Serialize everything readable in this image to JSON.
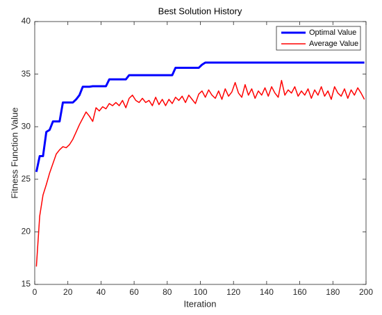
{
  "chart_data": {
    "type": "line",
    "title": "Best Solution History",
    "xlabel": "Iteration",
    "ylabel": "Fitness Function Value",
    "x": [
      1,
      3,
      5,
      7,
      9,
      11,
      13,
      15,
      17,
      19,
      21,
      23,
      25,
      27,
      29,
      31,
      33,
      35,
      37,
      39,
      41,
      43,
      45,
      47,
      49,
      51,
      53,
      55,
      57,
      59,
      61,
      63,
      65,
      67,
      69,
      71,
      73,
      75,
      77,
      79,
      81,
      83,
      85,
      87,
      89,
      91,
      93,
      95,
      97,
      99,
      101,
      103,
      105,
      107,
      109,
      111,
      113,
      115,
      117,
      119,
      121,
      123,
      125,
      127,
      129,
      131,
      133,
      135,
      137,
      139,
      141,
      143,
      145,
      147,
      149,
      151,
      153,
      155,
      157,
      159,
      161,
      163,
      165,
      167,
      169,
      171,
      173,
      175,
      177,
      179,
      181,
      183,
      185,
      187,
      189,
      191,
      193,
      195,
      197,
      199
    ],
    "series": [
      {
        "name": "Optimal Value",
        "color": "#0000ff",
        "width": 3,
        "values": [
          25.7,
          27.2,
          27.2,
          29.5,
          29.7,
          30.5,
          30.5,
          30.5,
          32.3,
          32.3,
          32.3,
          32.3,
          32.6,
          33.0,
          33.8,
          33.8,
          33.8,
          33.85,
          33.85,
          33.85,
          33.85,
          33.85,
          34.5,
          34.5,
          34.5,
          34.5,
          34.5,
          34.5,
          34.9,
          34.9,
          34.9,
          34.9,
          34.9,
          34.9,
          34.9,
          34.9,
          34.9,
          34.9,
          34.9,
          34.9,
          34.9,
          34.9,
          35.6,
          35.6,
          35.6,
          35.6,
          35.6,
          35.6,
          35.6,
          35.6,
          35.9,
          36.1,
          36.1,
          36.1,
          36.1,
          36.1,
          36.1,
          36.1,
          36.1,
          36.1,
          36.1,
          36.1,
          36.1,
          36.1,
          36.1,
          36.1,
          36.1,
          36.1,
          36.1,
          36.1,
          36.1,
          36.1,
          36.1,
          36.1,
          36.1,
          36.1,
          36.1,
          36.1,
          36.1,
          36.1,
          36.1,
          36.1,
          36.1,
          36.1,
          36.1,
          36.1,
          36.1,
          36.1,
          36.1,
          36.1,
          36.1,
          36.1,
          36.1,
          36.1,
          36.1,
          36.1,
          36.1,
          36.1,
          36.1,
          36.1
        ]
      },
      {
        "name": "Average Value",
        "color": "#ff0000",
        "width": 1.5,
        "values": [
          16.7,
          21.5,
          23.5,
          24.5,
          25.6,
          26.5,
          27.4,
          27.8,
          28.1,
          28.0,
          28.3,
          28.8,
          29.5,
          30.2,
          30.8,
          31.4,
          31.0,
          30.5,
          31.8,
          31.5,
          31.9,
          31.7,
          32.2,
          32.0,
          32.3,
          32.0,
          32.5,
          31.8,
          32.7,
          33.0,
          32.5,
          32.3,
          32.7,
          32.3,
          32.5,
          32.0,
          32.8,
          32.1,
          32.6,
          32.0,
          32.6,
          32.2,
          32.8,
          32.5,
          32.9,
          32.3,
          33.0,
          32.6,
          32.2,
          33.1,
          33.4,
          32.8,
          33.5,
          33.0,
          32.7,
          33.4,
          32.6,
          33.6,
          32.9,
          33.3,
          34.2,
          33.2,
          32.8,
          34.0,
          33.0,
          33.6,
          32.7,
          33.4,
          33.0,
          33.7,
          32.9,
          33.8,
          33.2,
          32.8,
          34.4,
          33.0,
          33.5,
          33.2,
          33.8,
          32.9,
          33.4,
          33.0,
          33.6,
          32.7,
          33.5,
          33.0,
          33.8,
          32.9,
          33.4,
          32.6,
          33.8,
          33.2,
          32.9,
          33.6,
          32.7,
          33.5,
          33.0,
          33.7,
          33.2,
          32.6
        ]
      }
    ],
    "xlim": [
      0,
      200
    ],
    "xticks": [
      0,
      20,
      40,
      60,
      80,
      100,
      120,
      140,
      160,
      180,
      200
    ],
    "ylim": [
      15,
      40
    ],
    "yticks": [
      15,
      20,
      25,
      30,
      35,
      40
    ],
    "grid": false,
    "legend": "upper right"
  }
}
